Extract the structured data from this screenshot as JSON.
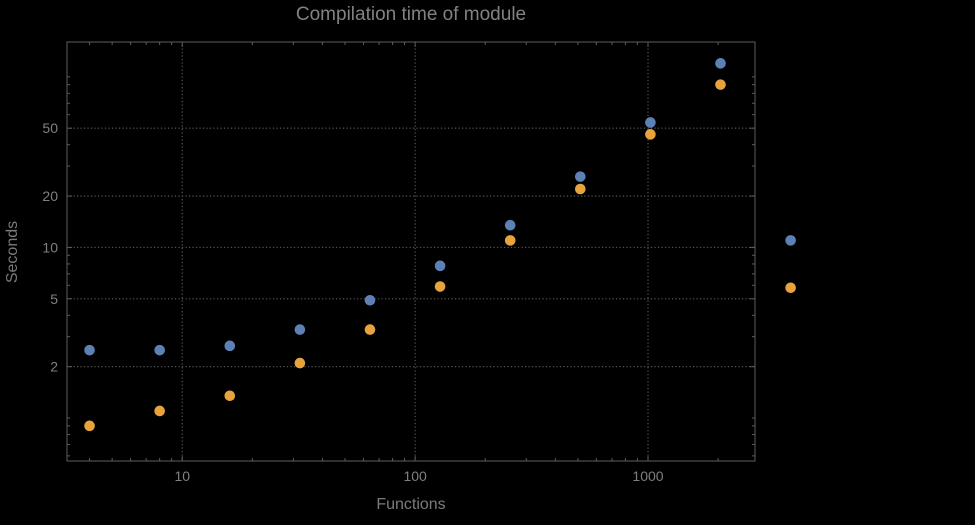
{
  "colors": {
    "background": "#000000",
    "frame": "#5e5e5e",
    "grid": "#585858",
    "text": "#808080",
    "series1": "#5e81b5",
    "series2": "#e8a33d"
  },
  "chart_data": {
    "type": "scatter",
    "title": "Compilation time of module",
    "xlabel": "Functions",
    "ylabel": "Seconds",
    "x_scale": "log",
    "y_scale": "log",
    "x_range": [
      3.2,
      2880
    ],
    "y_range": [
      0.56,
      160
    ],
    "x_ticks": [
      10,
      100,
      1000
    ],
    "x_tick_labels": [
      "10",
      "100",
      "1000"
    ],
    "y_ticks": [
      2,
      5,
      10,
      20,
      50
    ],
    "y_tick_labels": [
      "2",
      "5",
      "10",
      "20",
      "50"
    ],
    "grid": true,
    "legend": "none",
    "series": [
      {
        "name": "blue",
        "color": "#5e81b5",
        "points": [
          [
            4,
            2.5
          ],
          [
            8,
            2.5
          ],
          [
            16,
            2.65
          ],
          [
            32,
            3.3
          ],
          [
            64,
            4.9
          ],
          [
            128,
            7.8
          ],
          [
            256,
            13.5
          ],
          [
            512,
            26
          ],
          [
            1024,
            54
          ],
          [
            2048,
            120
          ],
          [
            4096,
            11
          ]
        ]
      },
      {
        "name": "orange",
        "color": "#e8a33d",
        "points": [
          [
            4,
            0.9
          ],
          [
            8,
            1.1
          ],
          [
            16,
            1.35
          ],
          [
            32,
            2.1
          ],
          [
            64,
            3.3
          ],
          [
            128,
            5.9
          ],
          [
            256,
            11
          ],
          [
            512,
            22
          ],
          [
            1024,
            46
          ],
          [
            2048,
            90
          ],
          [
            4096,
            5.8
          ]
        ]
      }
    ]
  }
}
